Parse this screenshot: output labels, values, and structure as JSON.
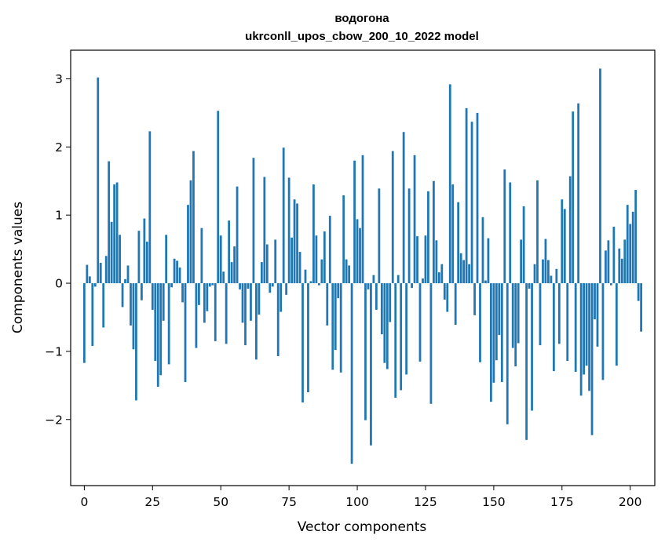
{
  "chart_data": {
    "type": "bar",
    "title": "водогона",
    "subtitle": "ukrconll_upos_cbow_200_10_2022 model",
    "xlabel": "Vector components",
    "ylabel": "Components values",
    "xlim": [
      -5,
      209
    ],
    "ylim": [
      -2.97,
      3.42
    ],
    "xticks": [
      0,
      25,
      50,
      75,
      100,
      125,
      150,
      175,
      200
    ],
    "yticks": [
      -2,
      -1,
      0,
      1,
      2,
      3
    ],
    "bar_color": "#1f77b4",
    "grid": false,
    "values": [
      -1.17,
      0.27,
      0.1,
      -0.92,
      -0.05,
      3.02,
      0.3,
      -0.65,
      0.4,
      1.79,
      0.9,
      1.45,
      1.48,
      0.71,
      -0.35,
      0.06,
      0.26,
      -0.62,
      -0.97,
      -1.72,
      0.77,
      -0.25,
      0.95,
      0.61,
      2.23,
      -0.39,
      -1.14,
      -1.52,
      -1.35,
      -0.55,
      0.71,
      -1.19,
      -0.06,
      0.36,
      0.33,
      0.23,
      -0.28,
      -1.45,
      1.15,
      1.51,
      1.94,
      -0.95,
      -0.32,
      0.81,
      -0.58,
      -0.41,
      -0.05,
      -0.03,
      -0.85,
      2.53,
      0.7,
      0.17,
      -0.89,
      0.92,
      0.31,
      0.54,
      1.42,
      -0.09,
      -0.58,
      -0.91,
      -0.08,
      -0.55,
      1.84,
      -1.12,
      -0.46,
      0.31,
      1.56,
      0.57,
      -0.14,
      -0.05,
      0.64,
      -1.07,
      -0.42,
      1.99,
      -0.17,
      1.55,
      0.67,
      1.23,
      1.17,
      0.46,
      -1.75,
      0.2,
      -1.6,
      0.03,
      1.45,
      0.7,
      -0.03,
      0.35,
      0.76,
      -0.62,
      0.99,
      -1.27,
      -0.98,
      -0.22,
      -1.31,
      1.29,
      0.35,
      0.26,
      -2.65,
      1.8,
      0.94,
      0.81,
      1.88,
      -2.01,
      -0.09,
      -2.38,
      0.12,
      -0.39,
      1.39,
      -0.75,
      -1.17,
      -1.26,
      -0.57,
      1.94,
      -1.68,
      0.12,
      -1.57,
      2.22,
      -1.34,
      1.39,
      -0.07,
      1.88,
      0.69,
      -1.15,
      0.07,
      0.7,
      1.35,
      -1.77,
      1.5,
      0.63,
      0.16,
      0.28,
      -0.24,
      -0.42,
      2.92,
      1.45,
      -0.61,
      1.19,
      0.44,
      0.34,
      2.57,
      0.28,
      2.37,
      -0.47,
      2.5,
      -1.16,
      0.97,
      0.04,
      0.66,
      -1.74,
      -1.46,
      -1.13,
      -0.76,
      -1.45,
      1.67,
      -2.07,
      1.48,
      -0.95,
      -1.22,
      -0.88,
      0.64,
      1.13,
      -2.3,
      -0.08,
      -1.87,
      0.28,
      1.51,
      -0.91,
      0.35,
      0.65,
      0.34,
      0.11,
      -1.29,
      0.21,
      -0.89,
      1.23,
      1.09,
      -1.14,
      1.57,
      2.52,
      -1.3,
      2.64,
      -1.65,
      -1.34,
      -1.21,
      -1.58,
      -2.23,
      -0.53,
      -0.93,
      3.15,
      -1.42,
      0.48,
      0.63,
      -0.03,
      0.83,
      -1.21,
      0.51,
      0.36,
      0.64,
      1.15,
      0.87,
      1.05,
      1.37,
      -0.26,
      -0.71
    ]
  }
}
